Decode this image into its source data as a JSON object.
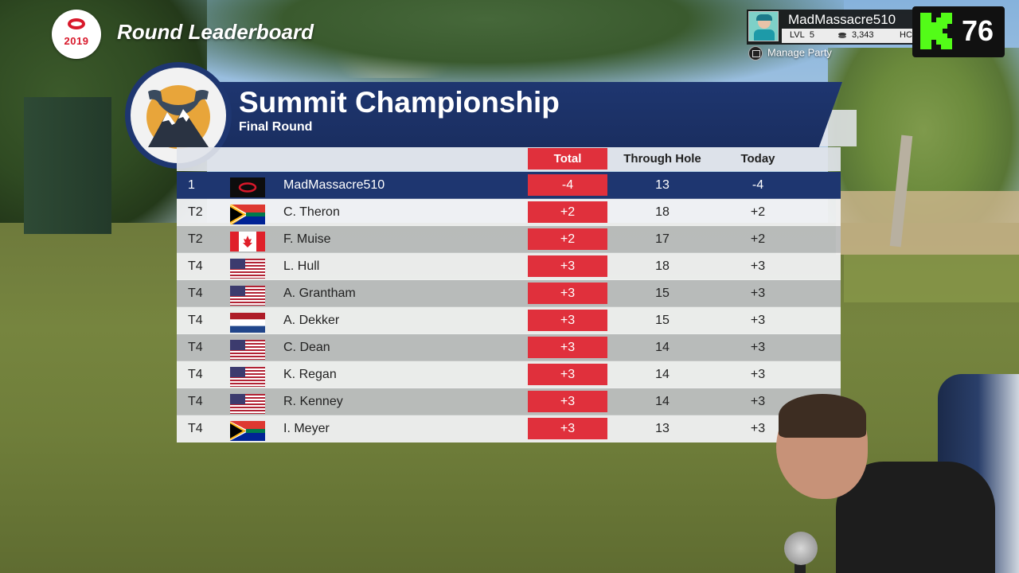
{
  "header": {
    "logo_year": "2019",
    "screen_title": "Round Leaderboard"
  },
  "player_card": {
    "name": "MadMassacre510",
    "level_label": "LVL",
    "level": "5",
    "coins": "3,343",
    "hc_label": "HC",
    "manage_party": "Manage Party"
  },
  "stream_badge": {
    "count": "76"
  },
  "tournament": {
    "name": "Summit Championship",
    "round": "Final Round"
  },
  "columns": {
    "total": "Total",
    "through_hole": "Through Hole",
    "today": "Today"
  },
  "rows": [
    {
      "pos": "1",
      "flag": "player-logo",
      "name": "MadMassacre510",
      "total": "-4",
      "through": "13",
      "today": "-4"
    },
    {
      "pos": "T2",
      "flag": "south-africa",
      "name": "C. Theron",
      "total": "+2",
      "through": "18",
      "today": "+2"
    },
    {
      "pos": "T2",
      "flag": "canada",
      "name": "F. Muise",
      "total": "+2",
      "through": "17",
      "today": "+2"
    },
    {
      "pos": "T4",
      "flag": "usa",
      "name": "L. Hull",
      "total": "+3",
      "through": "18",
      "today": "+3"
    },
    {
      "pos": "T4",
      "flag": "usa",
      "name": "A. Grantham",
      "total": "+3",
      "through": "15",
      "today": "+3"
    },
    {
      "pos": "T4",
      "flag": "netherlands",
      "name": "A. Dekker",
      "total": "+3",
      "through": "15",
      "today": "+3"
    },
    {
      "pos": "T4",
      "flag": "usa",
      "name": "C. Dean",
      "total": "+3",
      "through": "14",
      "today": "+3"
    },
    {
      "pos": "T4",
      "flag": "usa",
      "name": "K. Regan",
      "total": "+3",
      "through": "14",
      "today": "+3"
    },
    {
      "pos": "T4",
      "flag": "usa",
      "name": "R. Kenney",
      "total": "+3",
      "through": "14",
      "today": "+3"
    },
    {
      "pos": "T4",
      "flag": "south-africa",
      "name": "I. Meyer",
      "total": "+3",
      "through": "13",
      "today": "+3"
    }
  ],
  "colors": {
    "navy": "#1e3670",
    "total_red": "#e0303c",
    "kick_green": "#53fc18"
  }
}
